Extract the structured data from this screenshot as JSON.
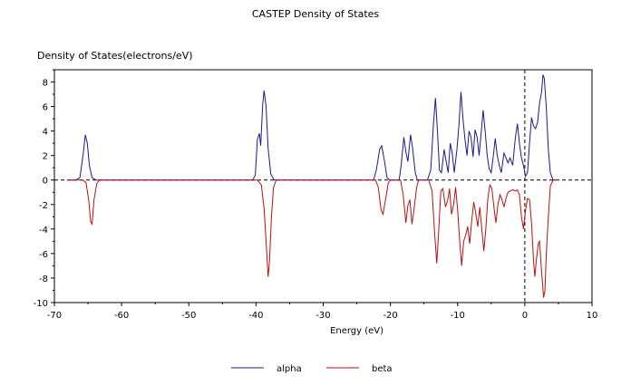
{
  "chart_data": {
    "type": "line",
    "title": "CASTEP Density of States",
    "xlabel": "Energy (eV)",
    "ylabel": "Density of States(electrons/eV)",
    "xlim": [
      -70,
      10
    ],
    "ylim": [
      -10,
      9
    ],
    "xticks": [
      -70,
      -60,
      -50,
      -40,
      -30,
      -20,
      -10,
      0,
      10
    ],
    "yticks": [
      -10,
      -8,
      -6,
      -4,
      -2,
      0,
      2,
      4,
      6,
      8
    ],
    "fermi_level": 0,
    "legend_position": "bottom-center",
    "series": [
      {
        "name": "alpha",
        "color": "#1a1a8c",
        "points": [
          [
            -68,
            0
          ],
          [
            -66.8,
            0
          ],
          [
            -66.2,
            0.2
          ],
          [
            -65.7,
            2.2
          ],
          [
            -65.4,
            3.7
          ],
          [
            -65.1,
            3.0
          ],
          [
            -64.8,
            1.2
          ],
          [
            -64.4,
            0.2
          ],
          [
            -63.8,
            0
          ],
          [
            -40.5,
            0
          ],
          [
            -40.1,
            0.4
          ],
          [
            -39.8,
            3.3
          ],
          [
            -39.5,
            3.8
          ],
          [
            -39.3,
            2.8
          ],
          [
            -39.0,
            6.2
          ],
          [
            -38.8,
            7.3
          ],
          [
            -38.5,
            6.0
          ],
          [
            -38.2,
            2.6
          ],
          [
            -37.8,
            0.5
          ],
          [
            -37.3,
            0
          ],
          [
            -22.5,
            0
          ],
          [
            -22.1,
            0.8
          ],
          [
            -21.6,
            2.5
          ],
          [
            -21.3,
            2.8
          ],
          [
            -20.9,
            1.6
          ],
          [
            -20.5,
            0.2
          ],
          [
            -20.1,
            0
          ],
          [
            -18.7,
            0
          ],
          [
            -18.4,
            1.2
          ],
          [
            -18.0,
            3.5
          ],
          [
            -17.7,
            2.3
          ],
          [
            -17.4,
            1.5
          ],
          [
            -17.0,
            3.7
          ],
          [
            -16.7,
            2.6
          ],
          [
            -16.3,
            0.6
          ],
          [
            -16.0,
            0
          ],
          [
            -14.5,
            0
          ],
          [
            -14.0,
            0.8
          ],
          [
            -13.6,
            4.5
          ],
          [
            -13.3,
            6.7
          ],
          [
            -13.0,
            4.0
          ],
          [
            -12.7,
            0.8
          ],
          [
            -12.4,
            0.6
          ],
          [
            -12.0,
            2.5
          ],
          [
            -11.7,
            1.5
          ],
          [
            -11.4,
            0.6
          ],
          [
            -11.1,
            3.0
          ],
          [
            -10.8,
            2.2
          ],
          [
            -10.5,
            0.6
          ],
          [
            -10.1,
            2.5
          ],
          [
            -9.8,
            4.5
          ],
          [
            -9.5,
            7.2
          ],
          [
            -9.2,
            5.0
          ],
          [
            -8.9,
            3.3
          ],
          [
            -8.6,
            2.0
          ],
          [
            -8.3,
            4.0
          ],
          [
            -8.0,
            3.5
          ],
          [
            -7.7,
            1.9
          ],
          [
            -7.4,
            4.1
          ],
          [
            -7.1,
            3.5
          ],
          [
            -6.8,
            2.0
          ],
          [
            -6.5,
            3.8
          ],
          [
            -6.2,
            5.7
          ],
          [
            -5.9,
            4.0
          ],
          [
            -5.6,
            2.0
          ],
          [
            -5.3,
            0.9
          ],
          [
            -5.0,
            0.6
          ],
          [
            -4.7,
            1.9
          ],
          [
            -4.4,
            3.4
          ],
          [
            -4.1,
            2.0
          ],
          [
            -3.8,
            1.2
          ],
          [
            -3.5,
            0.6
          ],
          [
            -3.1,
            2.2
          ],
          [
            -2.8,
            1.8
          ],
          [
            -2.5,
            1.4
          ],
          [
            -2.2,
            1.8
          ],
          [
            -1.8,
            1.2
          ],
          [
            -1.4,
            3.5
          ],
          [
            -1.1,
            4.6
          ],
          [
            -0.8,
            3.0
          ],
          [
            -0.5,
            1.8
          ],
          [
            -0.2,
            1.2
          ],
          [
            0.1,
            0.3
          ],
          [
            0.4,
            0.6
          ],
          [
            0.7,
            3.0
          ],
          [
            1.0,
            5.1
          ],
          [
            1.3,
            4.4
          ],
          [
            1.6,
            4.2
          ],
          [
            1.9,
            4.7
          ],
          [
            2.2,
            6.3
          ],
          [
            2.5,
            7.2
          ],
          [
            2.7,
            8.6
          ],
          [
            2.9,
            8.3
          ],
          [
            3.2,
            5.9
          ],
          [
            3.5,
            2.5
          ],
          [
            3.8,
            0.6
          ],
          [
            4.2,
            0
          ],
          [
            4.6,
            0
          ]
        ]
      },
      {
        "name": "beta",
        "color": "#bb1111",
        "points": [
          [
            -68,
            0
          ],
          [
            -65.8,
            0
          ],
          [
            -65.3,
            -0.2
          ],
          [
            -64.9,
            -1.6
          ],
          [
            -64.6,
            -3.4
          ],
          [
            -64.4,
            -3.6
          ],
          [
            -64.1,
            -1.6
          ],
          [
            -63.7,
            -0.3
          ],
          [
            -63.3,
            0
          ],
          [
            -39.8,
            0
          ],
          [
            -39.2,
            -0.4
          ],
          [
            -38.8,
            -2.3
          ],
          [
            -38.5,
            -5.0
          ],
          [
            -38.2,
            -7.9
          ],
          [
            -38.0,
            -6.7
          ],
          [
            -37.7,
            -3.0
          ],
          [
            -37.4,
            -0.6
          ],
          [
            -37.0,
            0
          ],
          [
            -22.2,
            0
          ],
          [
            -21.8,
            -0.6
          ],
          [
            -21.4,
            -2.4
          ],
          [
            -21.1,
            -2.8
          ],
          [
            -20.7,
            -1.5
          ],
          [
            -20.3,
            -0.2
          ],
          [
            -20.0,
            0
          ],
          [
            -18.5,
            0
          ],
          [
            -18.1,
            -1.2
          ],
          [
            -17.7,
            -3.5
          ],
          [
            -17.4,
            -2.1
          ],
          [
            -17.1,
            -1.6
          ],
          [
            -16.8,
            -3.6
          ],
          [
            -16.5,
            -2.5
          ],
          [
            -16.1,
            -0.6
          ],
          [
            -15.8,
            0
          ],
          [
            -14.3,
            0
          ],
          [
            -13.8,
            -0.9
          ],
          [
            -13.4,
            -4.5
          ],
          [
            -13.1,
            -6.8
          ],
          [
            -12.8,
            -4.0
          ],
          [
            -12.5,
            -0.9
          ],
          [
            -12.2,
            -0.7
          ],
          [
            -11.8,
            -2.2
          ],
          [
            -11.5,
            -1.7
          ],
          [
            -11.2,
            -0.7
          ],
          [
            -10.9,
            -2.8
          ],
          [
            -10.6,
            -2.0
          ],
          [
            -10.3,
            -0.6
          ],
          [
            -10.0,
            -2.4
          ],
          [
            -9.7,
            -4.9
          ],
          [
            -9.4,
            -7.0
          ],
          [
            -9.1,
            -5.0
          ],
          [
            -8.8,
            -4.5
          ],
          [
            -8.5,
            -3.8
          ],
          [
            -8.2,
            -5.2
          ],
          [
            -7.9,
            -3.3
          ],
          [
            -7.6,
            -1.8
          ],
          [
            -7.3,
            -2.7
          ],
          [
            -7.0,
            -3.8
          ],
          [
            -6.7,
            -2.2
          ],
          [
            -6.4,
            -4.0
          ],
          [
            -6.1,
            -5.8
          ],
          [
            -5.8,
            -4.0
          ],
          [
            -5.5,
            -1.5
          ],
          [
            -5.2,
            -0.4
          ],
          [
            -4.9,
            -0.7
          ],
          [
            -4.6,
            -2.2
          ],
          [
            -4.3,
            -3.5
          ],
          [
            -4.0,
            -2.0
          ],
          [
            -3.7,
            -1.2
          ],
          [
            -3.4,
            -1.6
          ],
          [
            -3.1,
            -2.2
          ],
          [
            -2.8,
            -1.5
          ],
          [
            -2.5,
            -1.0
          ],
          [
            -2.2,
            -0.9
          ],
          [
            -1.8,
            -0.8
          ],
          [
            -1.4,
            -0.9
          ],
          [
            -1.1,
            -0.8
          ],
          [
            -0.8,
            -1.2
          ],
          [
            -0.5,
            -3.0
          ],
          [
            -0.2,
            -4.0
          ],
          [
            0.1,
            -2.5
          ],
          [
            0.4,
            -1.5
          ],
          [
            0.7,
            -1.6
          ],
          [
            1.0,
            -3.5
          ],
          [
            1.3,
            -6.6
          ],
          [
            1.5,
            -7.9
          ],
          [
            1.7,
            -6.6
          ],
          [
            2.0,
            -5.2
          ],
          [
            2.2,
            -5.0
          ],
          [
            2.5,
            -7.5
          ],
          [
            2.8,
            -9.6
          ],
          [
            3.0,
            -9.0
          ],
          [
            3.2,
            -6.0
          ],
          [
            3.5,
            -3.0
          ],
          [
            3.8,
            -0.5
          ],
          [
            4.2,
            0
          ],
          [
            4.6,
            0
          ]
        ]
      }
    ]
  }
}
